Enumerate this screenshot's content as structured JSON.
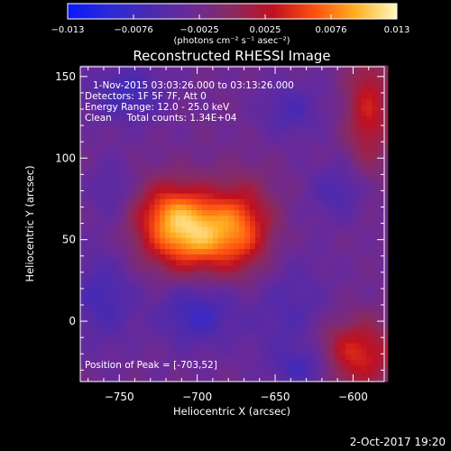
{
  "colors": {
    "background": "#000000",
    "text": "#ffffff",
    "colormap": [
      "#0a18ff",
      "#2a2ad8",
      "#4a2ab0",
      "#6a2a98",
      "#8a2a60",
      "#c01020",
      "#ff5010",
      "#ffb020",
      "#fff8c0"
    ]
  },
  "colorbar": {
    "ticks": [
      "-0.013",
      "-0.0076",
      "-0.0025",
      "0.0025",
      "0.0076",
      "0.013"
    ],
    "unit_label": "(photons cm⁻² s⁻¹ asec⁻²)"
  },
  "footer": {
    "date": "2-Oct-2017 19:20"
  },
  "chart_data": {
    "type": "heatmap",
    "title": "Reconstructed RHESSI Image",
    "xlabel": "Heliocentric X (arcsec)",
    "ylabel": "Heliocentric Y (arcsec)",
    "xlim": [
      -775,
      -580
    ],
    "ylim": [
      -37,
      156
    ],
    "xticks": [
      -750,
      -700,
      -650,
      -600
    ],
    "xtick_labels": [
      "−750",
      "−700",
      "−650",
      "−600"
    ],
    "yticks": [
      0,
      50,
      100,
      150
    ],
    "ytick_labels": [
      "0",
      "50",
      "100",
      "150"
    ],
    "value_range": [
      -0.013,
      0.013
    ],
    "info_lines": [
      "1-Nov-2015 03:03:26.000 to 03:13:26.000",
      "Detectors: 1F 5F 7F, Att 0",
      "Energy Range: 12.0 - 25.0 keV",
      "Clean     Total counts: 1.34E+04"
    ],
    "peak_label": "Position of Peak = [-703,52]",
    "peak": [
      -703,
      52
    ],
    "blobs": [
      {
        "x": -703,
        "y": 55,
        "sx": 22,
        "sy": 17,
        "amp": 0.013
      },
      {
        "x": -670,
        "y": 58,
        "sx": 14,
        "sy": 20,
        "amp": 0.006
      },
      {
        "x": -720,
        "y": 70,
        "sx": 14,
        "sy": 13,
        "amp": 0.004
      },
      {
        "x": -590,
        "y": 130,
        "sx": 10,
        "sy": 25,
        "amp": 0.0065
      },
      {
        "x": -598,
        "y": -20,
        "sx": 18,
        "sy": 15,
        "amp": 0.0075
      },
      {
        "x": -640,
        "y": 5,
        "sx": 18,
        "sy": 25,
        "amp": -0.003
      },
      {
        "x": -700,
        "y": 5,
        "sx": 18,
        "sy": 14,
        "amp": -0.005
      },
      {
        "x": -760,
        "y": 15,
        "sx": 14,
        "sy": 20,
        "amp": -0.004
      },
      {
        "x": -745,
        "y": 140,
        "sx": 16,
        "sy": 12,
        "amp": -0.0045
      },
      {
        "x": -640,
        "y": 130,
        "sx": 14,
        "sy": 12,
        "amp": -0.0035
      },
      {
        "x": -610,
        "y": 80,
        "sx": 12,
        "sy": 12,
        "amp": -0.0035
      },
      {
        "x": -755,
        "y": 80,
        "sx": 10,
        "sy": 14,
        "amp": -0.0025
      },
      {
        "x": -630,
        "y": -28,
        "sx": 14,
        "sy": 8,
        "amp": -0.004
      }
    ]
  }
}
